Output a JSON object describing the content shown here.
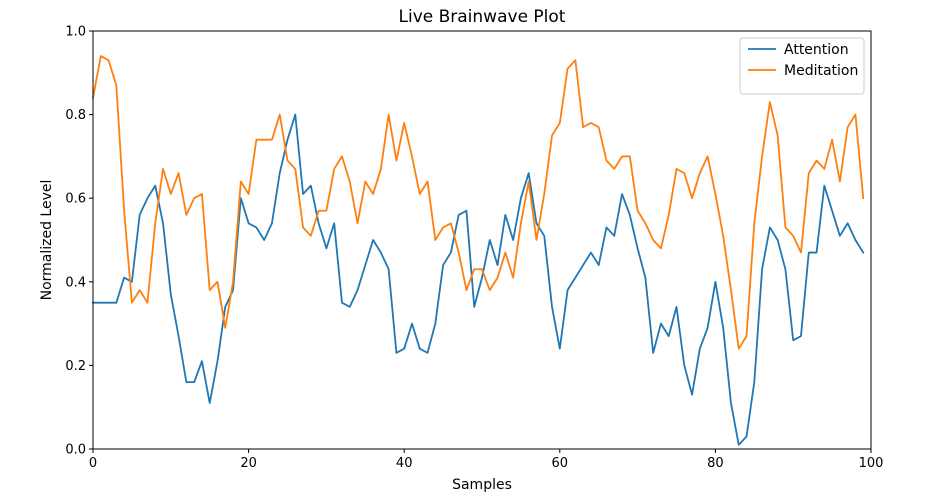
{
  "chart_data": {
    "type": "line",
    "title": "Live Brainwave Plot",
    "xlabel": "Samples",
    "ylabel": "Normalized Level",
    "xlim": [
      0,
      100
    ],
    "ylim": [
      0.0,
      1.0
    ],
    "x_ticks": [
      0,
      20,
      40,
      60,
      80,
      100
    ],
    "x_tick_labels": [
      "0",
      "20",
      "40",
      "60",
      "80",
      "100"
    ],
    "y_ticks": [
      0.0,
      0.2,
      0.4,
      0.6,
      0.8,
      1.0
    ],
    "y_tick_labels": [
      "0.0",
      "0.2",
      "0.4",
      "0.6",
      "0.8",
      "1.0"
    ],
    "grid": false,
    "legend_position": "top-right",
    "series": [
      {
        "name": "Attention",
        "color": "#1f77b4",
        "values": [
          0.35,
          0.35,
          0.35,
          0.35,
          0.41,
          0.4,
          0.56,
          0.6,
          0.63,
          0.54,
          0.37,
          0.27,
          0.16,
          0.16,
          0.21,
          0.11,
          0.21,
          0.34,
          0.38,
          0.6,
          0.54,
          0.53,
          0.5,
          0.54,
          0.66,
          0.74,
          0.8,
          0.61,
          0.63,
          0.54,
          0.48,
          0.54,
          0.35,
          0.34,
          0.38,
          0.44,
          0.5,
          0.47,
          0.43,
          0.23,
          0.24,
          0.3,
          0.24,
          0.23,
          0.3,
          0.44,
          0.47,
          0.56,
          0.57,
          0.34,
          0.41,
          0.5,
          0.44,
          0.56,
          0.5,
          0.6,
          0.66,
          0.54,
          0.51,
          0.34,
          0.24,
          0.38,
          0.41,
          0.44,
          0.47,
          0.44,
          0.53,
          0.51,
          0.61,
          0.56,
          0.48,
          0.41,
          0.23,
          0.3,
          0.27,
          0.34,
          0.2,
          0.13,
          0.24,
          0.29,
          0.4,
          0.29,
          0.11,
          0.01,
          0.03,
          0.16,
          0.43,
          0.53,
          0.5,
          0.43,
          0.26,
          0.27,
          0.47,
          0.47,
          0.63,
          0.57,
          0.51,
          0.54,
          0.5,
          0.47
        ]
      },
      {
        "name": "Meditation",
        "color": "#ff7f0e",
        "values": [
          0.84,
          0.94,
          0.93,
          0.87,
          0.57,
          0.35,
          0.38,
          0.35,
          0.54,
          0.67,
          0.61,
          0.66,
          0.56,
          0.6,
          0.61,
          0.38,
          0.4,
          0.29,
          0.4,
          0.64,
          0.61,
          0.74,
          0.74,
          0.74,
          0.8,
          0.69,
          0.67,
          0.53,
          0.51,
          0.57,
          0.57,
          0.67,
          0.7,
          0.64,
          0.54,
          0.64,
          0.61,
          0.67,
          0.8,
          0.69,
          0.78,
          0.7,
          0.61,
          0.64,
          0.5,
          0.53,
          0.54,
          0.47,
          0.38,
          0.43,
          0.43,
          0.38,
          0.41,
          0.47,
          0.41,
          0.54,
          0.64,
          0.5,
          0.61,
          0.75,
          0.78,
          0.91,
          0.93,
          0.77,
          0.78,
          0.77,
          0.69,
          0.67,
          0.7,
          0.7,
          0.57,
          0.54,
          0.5,
          0.48,
          0.56,
          0.67,
          0.66,
          0.6,
          0.66,
          0.7,
          0.61,
          0.51,
          0.38,
          0.24,
          0.27,
          0.54,
          0.7,
          0.83,
          0.75,
          0.53,
          0.51,
          0.47,
          0.66,
          0.69,
          0.67,
          0.74,
          0.64,
          0.77,
          0.8,
          0.6
        ]
      }
    ]
  }
}
